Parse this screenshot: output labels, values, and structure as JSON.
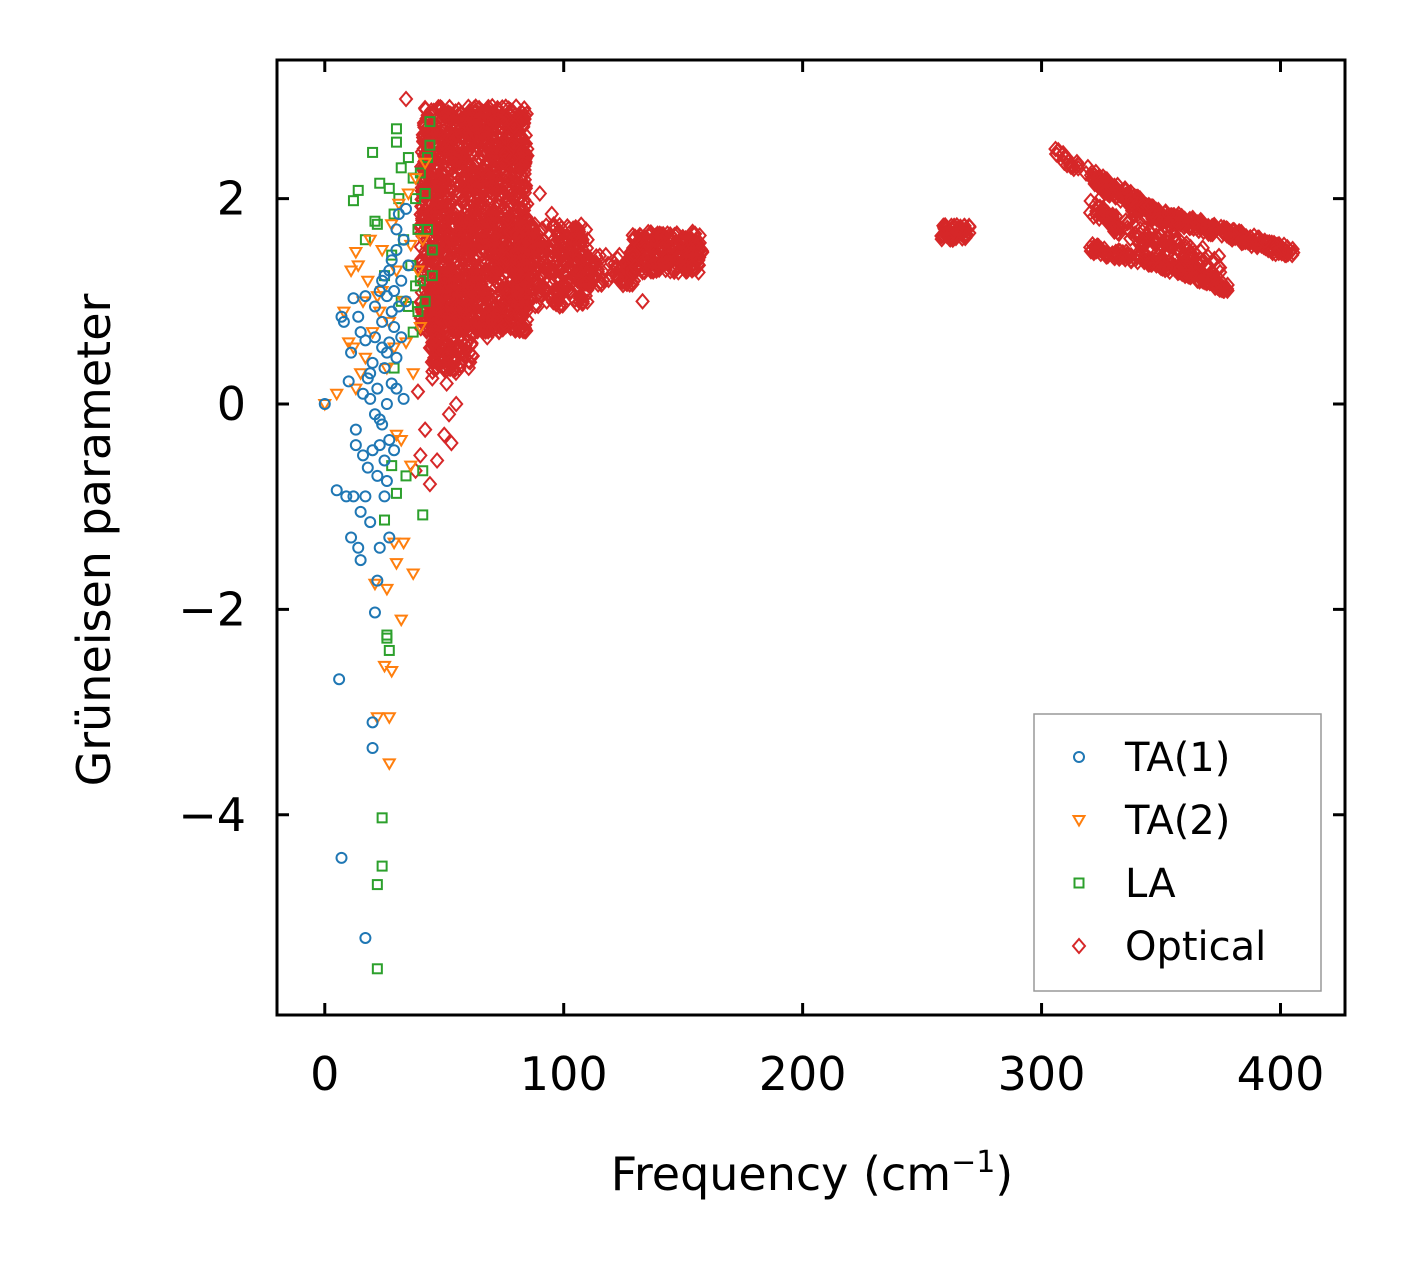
{
  "chart_data": {
    "type": "scatter",
    "xlabel": "Frequency (cm",
    "xlabel_sup": "−1",
    "xlabel_end": ")",
    "ylabel": "Grüneisen parameter",
    "xlim": [
      -20,
      427
    ],
    "ylim": [
      -5.95,
      3.35
    ],
    "xticks": [
      0,
      100,
      200,
      300,
      400
    ],
    "xtick_labels": [
      "0",
      "100",
      "200",
      "300",
      "400"
    ],
    "yticks": [
      2,
      0,
      -2,
      -4
    ],
    "ytick_labels": [
      "2",
      "0",
      "−2",
      "−4"
    ],
    "legend_position": "bottom-right",
    "series": [
      {
        "name": "TA(1)",
        "marker": "circle",
        "color": "#1f77b4",
        "points": [
          [
            0,
            0.0
          ],
          [
            5,
            -0.84
          ],
          [
            7,
            0.85
          ],
          [
            8,
            0.8
          ],
          [
            9,
            -0.9
          ],
          [
            10,
            0.22
          ],
          [
            11,
            -1.3
          ],
          [
            11,
            0.5
          ],
          [
            12,
            1.03
          ],
          [
            12,
            -0.9
          ],
          [
            13,
            -0.25
          ],
          [
            13,
            -0.4
          ],
          [
            14,
            -1.4
          ],
          [
            14,
            0.85
          ],
          [
            15,
            -1.05
          ],
          [
            15,
            -1.52
          ],
          [
            15,
            0.7
          ],
          [
            16,
            -0.5
          ],
          [
            16,
            0.1
          ],
          [
            17,
            -0.9
          ],
          [
            17,
            0.62
          ],
          [
            18,
            0.25
          ],
          [
            18,
            -0.62
          ],
          [
            19,
            -1.15
          ],
          [
            19,
            0.05
          ],
          [
            20,
            -0.45
          ],
          [
            20,
            0.4
          ],
          [
            20,
            -3.35
          ],
          [
            20,
            -3.1
          ],
          [
            21,
            -2.03
          ],
          [
            21,
            0.95
          ],
          [
            22,
            -0.7
          ],
          [
            22,
            0.15
          ],
          [
            22,
            -1.72
          ],
          [
            23,
            1.1
          ],
          [
            23,
            -0.4
          ],
          [
            23,
            -1.4
          ],
          [
            24,
            0.55
          ],
          [
            24,
            -0.2
          ],
          [
            24,
            0.8
          ],
          [
            25,
            -0.55
          ],
          [
            25,
            1.25
          ],
          [
            25,
            0.35
          ],
          [
            26,
            -0.75
          ],
          [
            26,
            0.0
          ],
          [
            26,
            1.05
          ],
          [
            27,
            0.6
          ],
          [
            27,
            -0.35
          ],
          [
            27,
            1.3
          ],
          [
            27,
            -1.3
          ],
          [
            28,
            0.9
          ],
          [
            28,
            0.2
          ],
          [
            28,
            1.4
          ],
          [
            29,
            0.75
          ],
          [
            29,
            -0.45
          ],
          [
            29,
            1.1
          ],
          [
            30,
            1.5
          ],
          [
            30,
            0.45
          ],
          [
            30,
            1.7
          ],
          [
            31,
            0.95
          ],
          [
            31,
            1.85
          ],
          [
            32,
            1.2
          ],
          [
            32,
            0.65
          ],
          [
            33,
            1.6
          ],
          [
            33,
            0.05
          ],
          [
            34,
            1.0
          ],
          [
            34,
            1.9
          ],
          [
            35,
            1.35
          ],
          [
            30,
            0.15
          ],
          [
            26,
            0.5
          ],
          [
            24,
            1.2
          ],
          [
            21,
            0.65
          ],
          [
            19,
            0.3
          ],
          [
            17,
            1.05
          ],
          [
            23,
            -0.15
          ],
          [
            6,
            -2.68
          ],
          [
            7,
            -4.42
          ],
          [
            17,
            -5.2
          ],
          [
            21,
            -0.1
          ],
          [
            25,
            -0.9
          ]
        ]
      },
      {
        "name": "TA(2)",
        "marker": "triangle-down",
        "color": "#ff7f0e",
        "points": [
          [
            0,
            0.0
          ],
          [
            5,
            0.1
          ],
          [
            8,
            0.9
          ],
          [
            10,
            0.6
          ],
          [
            11,
            1.3
          ],
          [
            12,
            0.55
          ],
          [
            13,
            1.48
          ],
          [
            13,
            0.15
          ],
          [
            14,
            1.35
          ],
          [
            15,
            0.3
          ],
          [
            16,
            1.0
          ],
          [
            17,
            0.45
          ],
          [
            18,
            1.2
          ],
          [
            19,
            1.6
          ],
          [
            20,
            0.7
          ],
          [
            21,
            -1.75
          ],
          [
            22,
            1.05
          ],
          [
            22,
            -3.05
          ],
          [
            23,
            0.9
          ],
          [
            24,
            1.5
          ],
          [
            25,
            -2.55
          ],
          [
            26,
            0.35
          ],
          [
            26,
            -1.8
          ],
          [
            27,
            -3.5
          ],
          [
            27,
            -3.05
          ],
          [
            28,
            1.75
          ],
          [
            28,
            -2.6
          ],
          [
            29,
            -1.35
          ],
          [
            30,
            -0.3
          ],
          [
            30,
            -1.55
          ],
          [
            31,
            1.95
          ],
          [
            32,
            -2.1
          ],
          [
            32,
            -0.35
          ],
          [
            33,
            -1.35
          ],
          [
            34,
            0.6
          ],
          [
            35,
            2.05
          ],
          [
            36,
            -0.6
          ],
          [
            37,
            0.3
          ],
          [
            37,
            -1.65
          ],
          [
            38,
            2.2
          ],
          [
            39,
            1.3
          ],
          [
            40,
            0.75
          ],
          [
            41,
            1.6
          ],
          [
            42,
            2.35
          ],
          [
            30,
            1.3
          ],
          [
            27,
            0.8
          ],
          [
            24,
            1.1
          ],
          [
            33,
            1.0
          ],
          [
            36,
            1.55
          ],
          [
            29,
            0.55
          ]
        ]
      },
      {
        "name": "LA",
        "marker": "square",
        "color": "#2ca02c",
        "points": [
          [
            12,
            1.98
          ],
          [
            14,
            2.08
          ],
          [
            17,
            1.6
          ],
          [
            20,
            2.45
          ],
          [
            21,
            1.78
          ],
          [
            22,
            1.75
          ],
          [
            22,
            -4.68
          ],
          [
            22,
            -5.5
          ],
          [
            23,
            2.15
          ],
          [
            24,
            -4.03
          ],
          [
            24,
            -4.5
          ],
          [
            25,
            -1.13
          ],
          [
            25,
            1.25
          ],
          [
            26,
            -2.25
          ],
          [
            26,
            -2.28
          ],
          [
            27,
            -2.4
          ],
          [
            27,
            2.1
          ],
          [
            28,
            -0.6
          ],
          [
            28,
            1.45
          ],
          [
            29,
            0.35
          ],
          [
            29,
            1.85
          ],
          [
            30,
            2.68
          ],
          [
            30,
            2.55
          ],
          [
            30,
            -0.87
          ],
          [
            31,
            2.0
          ],
          [
            32,
            2.3
          ],
          [
            32,
            1.0
          ],
          [
            33,
            1.6
          ],
          [
            34,
            -0.7
          ],
          [
            35,
            2.4
          ],
          [
            35,
            0.95
          ],
          [
            36,
            1.35
          ],
          [
            37,
            2.2
          ],
          [
            37,
            0.7
          ],
          [
            38,
            1.15
          ],
          [
            38,
            2.0
          ],
          [
            39,
            0.9
          ],
          [
            39,
            1.7
          ],
          [
            40,
            2.25
          ],
          [
            40,
            1.2
          ],
          [
            41,
            -0.65
          ],
          [
            41,
            -1.08
          ],
          [
            42,
            1.0
          ],
          [
            42,
            2.05
          ],
          [
            43,
            1.7
          ],
          [
            43,
            2.4
          ],
          [
            44,
            2.75
          ],
          [
            44,
            2.52
          ],
          [
            45,
            1.5
          ],
          [
            45,
            1.25
          ]
        ]
      },
      {
        "name": "Optical",
        "marker": "diamond",
        "color": "#d62728",
        "points": [
          [
            34,
            2.97
          ],
          [
            38,
            -0.65
          ],
          [
            39,
            0.12
          ],
          [
            40,
            -0.5
          ],
          [
            42,
            -0.25
          ],
          [
            44,
            -0.78
          ],
          [
            45,
            0.25
          ],
          [
            47,
            -0.55
          ],
          [
            48,
            0.55
          ],
          [
            50,
            -0.3
          ],
          [
            51,
            0.2
          ],
          [
            52,
            -0.1
          ],
          [
            53,
            -0.38
          ],
          [
            55,
            0.0
          ],
          [
            62,
            0.85
          ],
          [
            68,
            0.65
          ],
          [
            70,
            0.72
          ],
          [
            90,
            2.05
          ],
          [
            95,
            1.85
          ],
          [
            106,
            1.65
          ],
          [
            110,
            1.6
          ],
          [
            133,
            1.0
          ]
        ],
        "regions": [
          {
            "x": [
              40,
              85
            ],
            "y": [
              0.7,
              2.9
            ],
            "count": 1500
          },
          {
            "x": [
              44,
              62
            ],
            "y": [
              0.3,
              1.2
            ],
            "count": 220
          },
          {
            "x": [
              80,
              110
            ],
            "y": [
              0.95,
              1.75
            ],
            "count": 320
          },
          {
            "x": [
              105,
              130
            ],
            "y": [
              1.15,
              1.45
            ],
            "count": 90
          },
          {
            "x": [
              128,
              158
            ],
            "y": [
              1.28,
              1.68
            ],
            "count": 230
          },
          {
            "x": [
              258,
              270
            ],
            "y": [
              1.6,
              1.74
            ],
            "count": 60
          },
          {
            "line": [
              [
                305,
                2.45
              ],
              [
                335,
                2.05
              ],
              [
                350,
                1.82
              ],
              [
                380,
                1.65
              ],
              [
                406,
                1.47
              ]
            ],
            "spread": 0.05,
            "count": 240
          },
          {
            "line": [
              [
                322,
                2.2
              ],
              [
                340,
                1.9
              ],
              [
                360,
                1.78
              ],
              [
                400,
                1.5
              ]
            ],
            "spread": 0.06,
            "count": 200
          },
          {
            "line": [
              [
                320,
                1.52
              ],
              [
                345,
                1.4
              ],
              [
                362,
                1.28
              ],
              [
                378,
                1.13
              ]
            ],
            "spread": 0.05,
            "count": 200
          },
          {
            "line": [
              [
                320,
                1.95
              ],
              [
                340,
                1.62
              ],
              [
                355,
                1.55
              ],
              [
                375,
                1.35
              ]
            ],
            "spread": 0.1,
            "count": 140
          }
        ]
      }
    ]
  }
}
